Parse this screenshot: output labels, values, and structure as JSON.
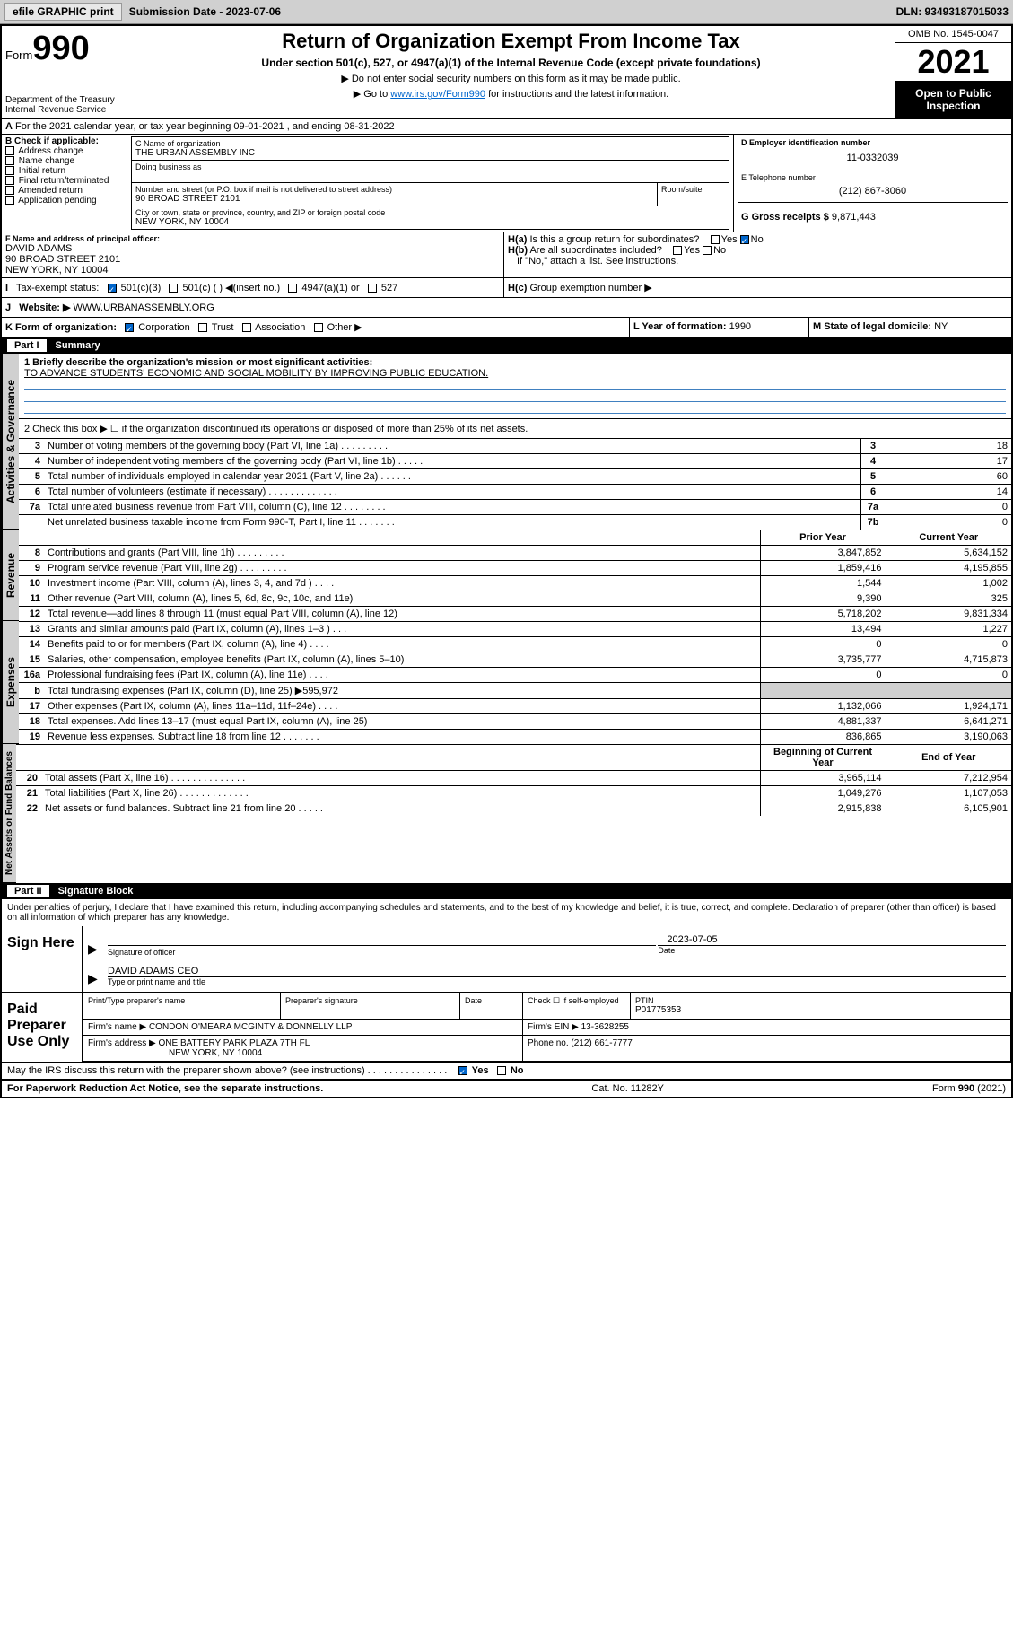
{
  "toolbar": {
    "efile": "efile GRAPHIC print",
    "sub_label": "Submission Date - 2023-07-06",
    "dln": "DLN: 93493187015033"
  },
  "header": {
    "form": "Form",
    "formnum": "990",
    "dept": "Department of the Treasury Internal Revenue Service",
    "title": "Return of Organization Exempt From Income Tax",
    "sub": "Under section 501(c), 527, or 4947(a)(1) of the Internal Revenue Code (except private foundations)",
    "note1": "▶ Do not enter social security numbers on this form as it may be made public.",
    "note2_pre": "▶ Go to ",
    "note2_link": "www.irs.gov/Form990",
    "note2_post": " for instructions and the latest information.",
    "omb": "OMB No. 1545-0047",
    "year": "2021",
    "inspect": "Open to Public Inspection"
  },
  "period": "For the 2021 calendar year, or tax year beginning 09-01-2021   , and ending 08-31-2022",
  "block_b": {
    "label": "B Check if applicable:",
    "items": [
      "Address change",
      "Name change",
      "Initial return",
      "Final return/terminated",
      "Amended return",
      "Application pending"
    ]
  },
  "block_c": {
    "label_name": "C Name of organization",
    "name": "THE URBAN ASSEMBLY INC",
    "dba_label": "Doing business as",
    "addr_label": "Number and street (or P.O. box if mail is not delivered to street address)",
    "room_label": "Room/suite",
    "addr": "90 BROAD STREET 2101",
    "city_label": "City or town, state or province, country, and ZIP or foreign postal code",
    "city": "NEW YORK, NY  10004"
  },
  "block_d": {
    "label": "D Employer identification number",
    "val": "11-0332039"
  },
  "block_e": {
    "label": "E Telephone number",
    "val": "(212) 867-3060"
  },
  "block_g": {
    "label": "G Gross receipts $",
    "val": "9,871,443"
  },
  "block_f": {
    "label": "F Name and address of principal officer:",
    "name": "DAVID ADAMS",
    "addr1": "90 BROAD STREET 2101",
    "addr2": "NEW YORK, NY  10004"
  },
  "block_h": {
    "ha": "Is this a group return for subordinates?",
    "hb": "Are all subordinates included?",
    "hb_note": "If \"No,\" attach a list. See instructions.",
    "hc": "Group exemption number ▶",
    "yes": "Yes",
    "no": "No"
  },
  "block_i": {
    "label": "Tax-exempt status:",
    "opts": [
      "501(c)(3)",
      "501(c) (  ) ◀(insert no.)",
      "4947(a)(1) or",
      "527"
    ]
  },
  "block_j": {
    "label": "Website: ▶",
    "val": "WWW.URBANASSEMBLY.ORG"
  },
  "block_k": {
    "label": "K Form of organization:",
    "opts": [
      "Corporation",
      "Trust",
      "Association",
      "Other ▶"
    ]
  },
  "block_l": {
    "label": "L Year of formation:",
    "val": "1990"
  },
  "block_m": {
    "label": "M State of legal domicile:",
    "val": "NY"
  },
  "part1": {
    "label": "Part I",
    "title": "Summary"
  },
  "summary": {
    "q1_label": "1   Briefly describe the organization's mission or most significant activities:",
    "q1_val": "TO ADVANCE STUDENTS' ECONOMIC AND SOCIAL MOBILITY BY IMPROVING PUBLIC EDUCATION.",
    "q2": "2   Check this box ▶ ☐  if the organization discontinued its operations or disposed of more than 25% of its net assets.",
    "lines_gov": [
      {
        "n": "3",
        "d": "Number of voting members of the governing body (Part VI, line 1a)   .    .    .    .    .    .    .    .    .",
        "b": "3",
        "v": "18"
      },
      {
        "n": "4",
        "d": "Number of independent voting members of the governing body (Part VI, line 1b)   .    .    .    .    .",
        "b": "4",
        "v": "17"
      },
      {
        "n": "5",
        "d": "Total number of individuals employed in calendar year 2021 (Part V, line 2a)   .    .    .    .    .    .",
        "b": "5",
        "v": "60"
      },
      {
        "n": "6",
        "d": "Total number of volunteers (estimate if necessary)   .    .    .    .    .    .    .    .    .    .    .    .    .",
        "b": "6",
        "v": "14"
      },
      {
        "n": "7a",
        "d": "Total unrelated business revenue from Part VIII, column (C), line 12   .    .    .    .    .    .    .    .",
        "b": "7a",
        "v": "0"
      },
      {
        "n": "",
        "d": "Net unrelated business taxable income from Form 990-T, Part I, line 11   .    .    .    .    .    .    .",
        "b": "7b",
        "v": "0"
      }
    ],
    "head_prior": "Prior Year",
    "head_curr": "Current Year",
    "lines_rev": [
      {
        "n": "8",
        "d": "Contributions and grants (Part VIII, line 1h)   .    .    .    .    .    .    .    .    .",
        "p": "3,847,852",
        "c": "5,634,152"
      },
      {
        "n": "9",
        "d": "Program service revenue (Part VIII, line 2g)   .    .    .    .    .    .    .    .    .",
        "p": "1,859,416",
        "c": "4,195,855"
      },
      {
        "n": "10",
        "d": "Investment income (Part VIII, column (A), lines 3, 4, and 7d )   .    .    .    .",
        "p": "1,544",
        "c": "1,002"
      },
      {
        "n": "11",
        "d": "Other revenue (Part VIII, column (A), lines 5, 6d, 8c, 9c, 10c, and 11e)",
        "p": "9,390",
        "c": "325"
      },
      {
        "n": "12",
        "d": "Total revenue—add lines 8 through 11 (must equal Part VIII, column (A), line 12)",
        "p": "5,718,202",
        "c": "9,831,334"
      }
    ],
    "lines_exp": [
      {
        "n": "13",
        "d": "Grants and similar amounts paid (Part IX, column (A), lines 1–3 )   .    .    .",
        "p": "13,494",
        "c": "1,227"
      },
      {
        "n": "14",
        "d": "Benefits paid to or for members (Part IX, column (A), line 4)   .    .    .    .",
        "p": "0",
        "c": "0"
      },
      {
        "n": "15",
        "d": "Salaries, other compensation, employee benefits (Part IX, column (A), lines 5–10)",
        "p": "3,735,777",
        "c": "4,715,873"
      },
      {
        "n": "16a",
        "d": "Professional fundraising fees (Part IX, column (A), line 11e)   .    .    .    .",
        "p": "0",
        "c": "0"
      },
      {
        "n": "b",
        "d": "Total fundraising expenses (Part IX, column (D), line 25) ▶595,972",
        "p": "",
        "c": "",
        "shade": true
      },
      {
        "n": "17",
        "d": "Other expenses (Part IX, column (A), lines 11a–11d, 11f–24e)   .    .    .    .",
        "p": "1,132,066",
        "c": "1,924,171"
      },
      {
        "n": "18",
        "d": "Total expenses. Add lines 13–17 (must equal Part IX, column (A), line 25)",
        "p": "4,881,337",
        "c": "6,641,271"
      },
      {
        "n": "19",
        "d": "Revenue less expenses. Subtract line 18 from line 12   .    .    .    .    .    .    .",
        "p": "836,865",
        "c": "3,190,063"
      }
    ],
    "head_begin": "Beginning of Current Year",
    "head_end": "End of Year",
    "lines_net": [
      {
        "n": "20",
        "d": "Total assets (Part X, line 16)   .    .    .    .    .    .    .    .    .    .    .    .    .    .",
        "p": "3,965,114",
        "c": "7,212,954"
      },
      {
        "n": "21",
        "d": "Total liabilities (Part X, line 26)   .    .    .    .    .    .    .    .    .    .    .    .    .",
        "p": "1,049,276",
        "c": "1,107,053"
      },
      {
        "n": "22",
        "d": "Net assets or fund balances. Subtract line 21 from line 20   .    .    .    .    .",
        "p": "2,915,838",
        "c": "6,105,901"
      }
    ]
  },
  "part2": {
    "label": "Part II",
    "title": "Signature Block"
  },
  "sig": {
    "decl": "Under penalties of perjury, I declare that I have examined this return, including accompanying schedules and statements, and to the best of my knowledge and belief, it is true, correct, and complete. Declaration of preparer (other than officer) is based on all information of which preparer has any knowledge.",
    "sign_here": "Sign Here",
    "sig_officer": "Signature of officer",
    "date": "Date",
    "date_val": "2023-07-05",
    "name_title": "DAVID ADAMS  CEO",
    "type_name": "Type or print name and title",
    "paid": "Paid Preparer Use Only",
    "pt_name": "Print/Type preparer's name",
    "prep_sig": "Preparer's signature",
    "chk_se": "Check ☐ if self-employed",
    "ptin": "PTIN",
    "ptin_val": "P01775353",
    "firm_name_l": "Firm's name    ▶",
    "firm_name": "CONDON O'MEARA MCGINTY & DONNELLY LLP",
    "firm_ein_l": "Firm's EIN ▶",
    "firm_ein": "13-3628255",
    "firm_addr_l": "Firm's address ▶",
    "firm_addr": "ONE BATTERY PARK PLAZA 7TH FL",
    "firm_city": "NEW YORK, NY  10004",
    "phone_l": "Phone no.",
    "phone": "(212) 661-7777",
    "discuss": "May the IRS discuss this return with the preparer shown above? (see instructions)   .    .    .    .    .    .    .    .    .    .    .    .    .    .    .",
    "paperwork": "For Paperwork Reduction Act Notice, see the separate instructions.",
    "cat": "Cat. No. 11282Y",
    "formfoot": "Form 990 (2021)"
  },
  "sides": {
    "gov": "Activities & Governance",
    "rev": "Revenue",
    "exp": "Expenses",
    "net": "Net Assets or Fund Balances"
  }
}
